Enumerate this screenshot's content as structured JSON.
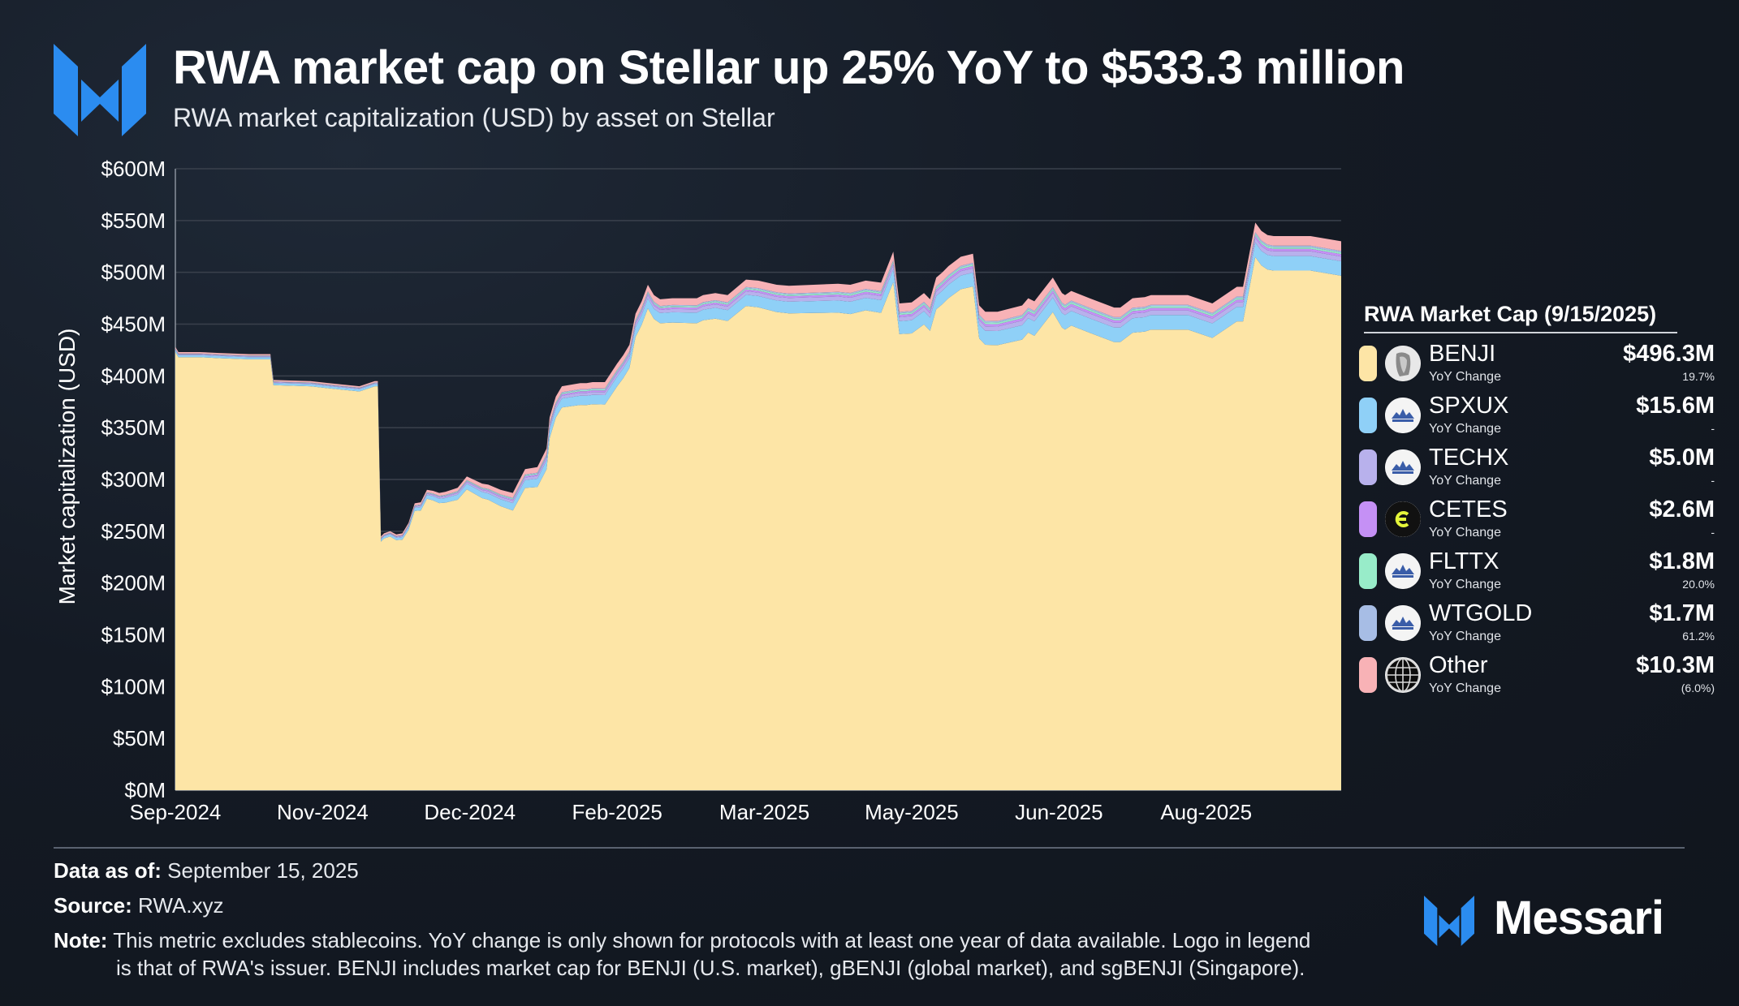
{
  "header": {
    "title": "RWA market cap on Stellar up 25% YoY to $533.3 million",
    "subtitle": "RWA market capitalization (USD) by asset on Stellar"
  },
  "colors": {
    "background": "#141a24",
    "brand_blue": "#2b8cf0",
    "benji": "#fde5a6",
    "spxux": "#8fd0f7",
    "techx": "#b8b1ec",
    "cetes": "#c590f5",
    "flttx": "#98ecc9",
    "wtgold": "#a7bde5",
    "other": "#f8b2b6"
  },
  "chart_data": {
    "type": "area",
    "stacked": true,
    "ylabel": "Market capitalization (USD)",
    "ylim": [
      0,
      600
    ],
    "y_unit": "$M",
    "y_ticks": [
      "$0M",
      "$50M",
      "$100M",
      "$150M",
      "$200M",
      "$250M",
      "$300M",
      "$350M",
      "$400M",
      "$450M",
      "$500M",
      "$550M",
      "$600M"
    ],
    "x_ticks": [
      "Sep-2024",
      "Nov-2024",
      "Dec-2024",
      "Feb-2025",
      "Mar-2025",
      "May-2025",
      "Jun-2025",
      "Aug-2025"
    ],
    "x_days": [
      0,
      380
    ],
    "x_tick_days": [
      0,
      48,
      96,
      144,
      192,
      240,
      288,
      336
    ],
    "total": {
      "x": [
        0,
        1,
        8,
        15,
        24,
        31,
        32,
        44,
        50,
        60,
        65,
        66,
        67,
        68,
        70,
        72,
        74,
        76,
        78,
        80,
        82,
        84,
        86,
        88,
        90,
        92,
        95,
        100,
        102,
        106,
        110,
        114,
        118,
        121,
        122,
        124,
        126,
        130,
        132,
        134,
        136,
        140,
        144,
        146,
        148,
        150,
        152,
        154,
        156,
        158,
        162,
        170,
        172,
        176,
        180,
        186,
        190,
        196,
        200,
        208,
        216,
        220,
        225,
        230,
        234,
        236,
        240,
        244,
        246,
        248,
        250,
        252,
        256,
        260,
        262,
        264,
        268,
        276,
        278,
        280,
        286,
        289,
        290,
        292,
        298,
        306,
        308,
        312,
        316,
        318,
        322,
        326,
        330,
        338,
        346,
        348,
        352,
        354,
        356,
        358,
        362,
        370,
        380
      ],
      "y": [
        428,
        423,
        423,
        422,
        421,
        421,
        396,
        395,
        393,
        390,
        395,
        395,
        245,
        248,
        250,
        247,
        248,
        258,
        277,
        278,
        290,
        289,
        287,
        288,
        290,
        292,
        303,
        296,
        295,
        290,
        287,
        310,
        312,
        330,
        360,
        380,
        390,
        392,
        393,
        393,
        394,
        394,
        412,
        420,
        430,
        460,
        472,
        488,
        478,
        474,
        475,
        475,
        478,
        480,
        478,
        493,
        492,
        488,
        487,
        488,
        489,
        488,
        492,
        490,
        520,
        470,
        471,
        480,
        474,
        495,
        500,
        506,
        515,
        518,
        468,
        462,
        462,
        468,
        475,
        472,
        495,
        480,
        478,
        482,
        475,
        466,
        466,
        475,
        476,
        478,
        478,
        478,
        478,
        470,
        486,
        486,
        548,
        540,
        536,
        535,
        535,
        535,
        530
      ]
    },
    "series": [
      {
        "name": "BENJI",
        "latest_value": 496.3,
        "latest_label": "$496.3M",
        "yoy": "19.7%"
      },
      {
        "name": "SPXUX",
        "latest_value": 15.6,
        "latest_label": "$15.6M",
        "yoy": "-"
      },
      {
        "name": "TECHX",
        "latest_value": 5.0,
        "latest_label": "$5.0M",
        "yoy": "-"
      },
      {
        "name": "CETES",
        "latest_value": 2.6,
        "latest_label": "$2.6M",
        "yoy": "-"
      },
      {
        "name": "FLTTX",
        "latest_value": 1.8,
        "latest_label": "$1.8M",
        "yoy": "20.0%"
      },
      {
        "name": "WTGOLD",
        "latest_value": 1.7,
        "latest_label": "$1.7M",
        "yoy": "61.2%"
      },
      {
        "name": "Other",
        "latest_value": 10.3,
        "latest_label": "$10.3M",
        "yoy": "(6.0%)"
      }
    ],
    "legend_title": "RWA Market Cap (9/15/2025)",
    "legend_yoy_label": "YoY Change",
    "legend_position": "right"
  },
  "footer": {
    "data_as_of_label": "Data as of:",
    "data_as_of_value": "September 15, 2025",
    "source_label": "Source:",
    "source_value": "RWA.xyz",
    "note_label": "Note:",
    "note_line1": "This metric excludes stablecoins. YoY change is only shown for protocols with at least one year of data available. Logo in legend",
    "note_line2": "is that of RWA's issuer. BENJI includes market cap for BENJI (U.S. market), gBENJI (global market), and sgBENJI (Singapore).",
    "brand_name": "Messari"
  }
}
